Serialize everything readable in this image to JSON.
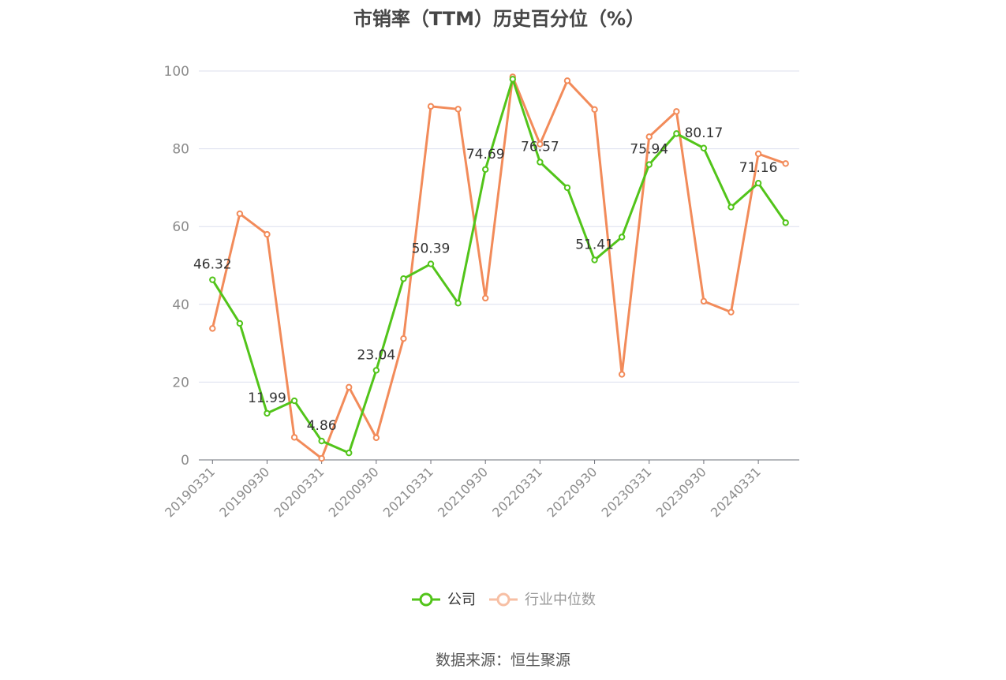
{
  "chart_data": {
    "type": "line",
    "title": "市销率（TTM）历史百分位（%）",
    "xlabel": "",
    "ylabel": "",
    "ylim": [
      0,
      100
    ],
    "yticks": [
      0,
      20,
      40,
      60,
      80,
      100
    ],
    "grid": true,
    "legend_position": "bottom",
    "x": [
      "20190331",
      "20190630",
      "20190930",
      "20191231",
      "20200331",
      "20200630",
      "20200930",
      "20201231",
      "20210331",
      "20210630",
      "20210930",
      "20211231",
      "20220331",
      "20220630",
      "20220930",
      "20221231",
      "20230331",
      "20230630",
      "20230930",
      "20231231",
      "20240331",
      "20240630"
    ],
    "xtick_labels": [
      "20190331",
      "20190930",
      "20200331",
      "20200930",
      "20210331",
      "20210930",
      "20220331",
      "20220930",
      "20230331",
      "20230930",
      "20240331"
    ],
    "series": [
      {
        "name": "公司",
        "color": "#52c41a",
        "values": [
          46.32,
          35.1,
          11.99,
          15.2,
          4.86,
          1.8,
          23.04,
          46.6,
          50.39,
          40.3,
          74.69,
          97.9,
          76.57,
          70.0,
          51.41,
          57.3,
          75.94,
          83.9,
          80.17,
          65.0,
          71.16,
          61.0
        ],
        "labels": {
          "0": "46.32",
          "2": "11.99",
          "4": "4.86",
          "6": "23.04",
          "8": "50.39",
          "10": "74.69",
          "12": "76.57",
          "14": "51.41",
          "16": "75.94",
          "18": "80.17",
          "20": "71.16"
        }
      },
      {
        "name": "行业中位数",
        "color": "#f28b5a",
        "values": [
          33.8,
          63.3,
          58.0,
          5.8,
          0.4,
          18.7,
          5.7,
          31.2,
          90.9,
          90.2,
          41.6,
          98.5,
          81.2,
          97.5,
          90.1,
          22.0,
          83.1,
          89.6,
          40.8,
          38.0,
          78.7,
          76.2
        ]
      }
    ]
  },
  "source": "数据来源：恒生聚源"
}
